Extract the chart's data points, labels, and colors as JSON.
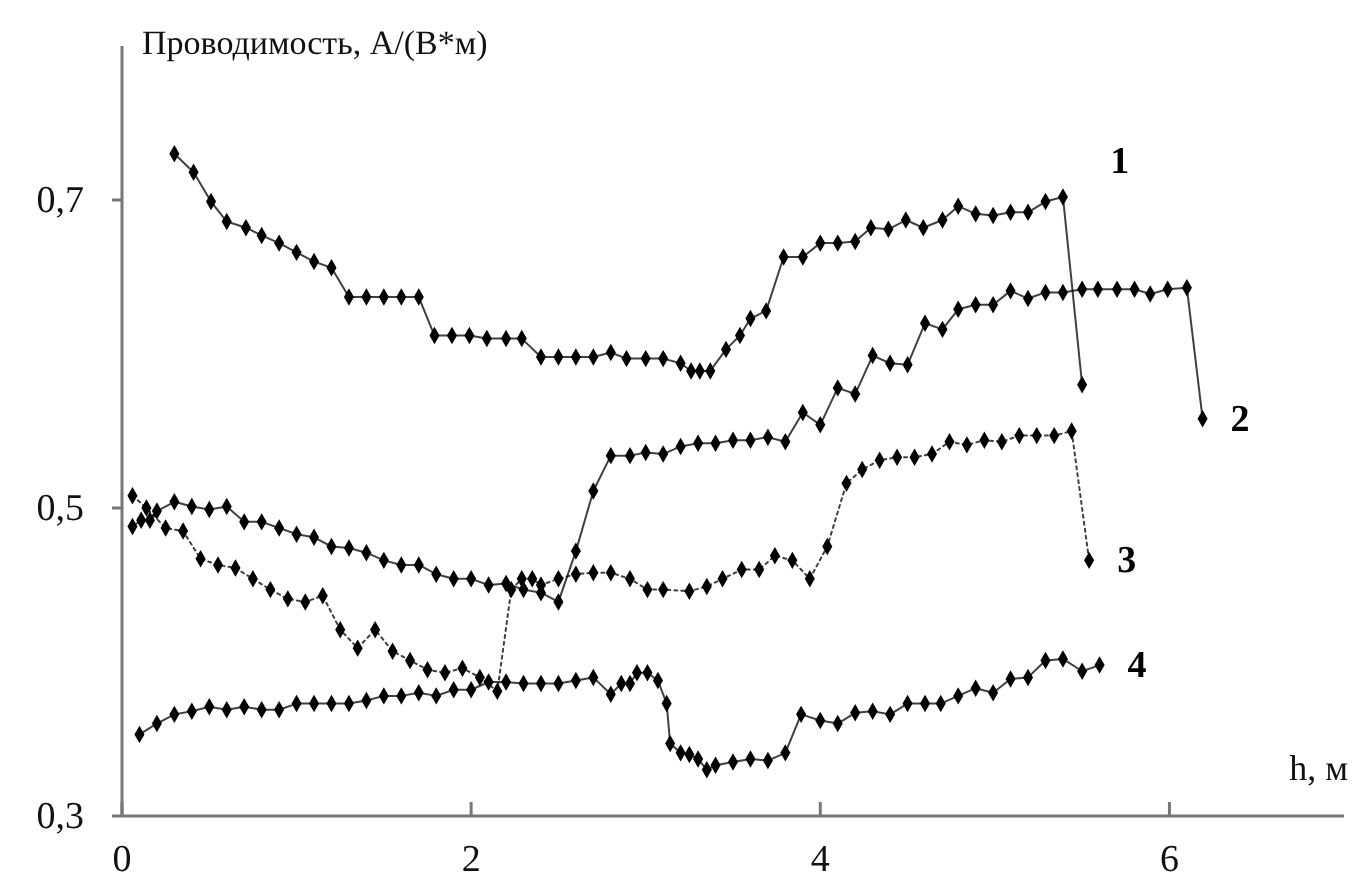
{
  "chart_data": {
    "type": "line",
    "ylabel": "Проводимость, А/(В*м)",
    "xlabel": "h, м",
    "xlim": [
      0,
      7
    ],
    "xticks": [
      0,
      2,
      4,
      6
    ],
    "ylim": [
      0.3,
      0.8
    ],
    "yticks": [
      {
        "value": 0.3,
        "label": "0,3"
      },
      {
        "value": 0.5,
        "label": "0,5"
      },
      {
        "value": 0.7,
        "label": "0,7"
      }
    ],
    "grid": false,
    "marker": "diamond",
    "series": [
      {
        "name": "1",
        "color": "#000000",
        "line_style": "solid",
        "x": [
          0.3,
          0.41,
          0.51,
          0.6,
          0.71,
          0.8,
          0.9,
          1.0,
          1.1,
          1.2,
          1.3,
          1.4,
          1.5,
          1.6,
          1.7,
          1.79,
          1.89,
          1.99,
          2.09,
          2.2,
          2.29,
          2.4,
          2.5,
          2.6,
          2.7,
          2.8,
          2.89,
          3.0,
          3.1,
          3.2,
          3.26,
          3.31,
          3.37,
          3.46,
          3.54,
          3.6,
          3.69,
          3.79,
          3.9,
          4.0,
          4.1,
          4.2,
          4.29,
          4.39,
          4.49,
          4.59,
          4.7,
          4.79,
          4.89,
          4.99,
          5.09,
          5.19,
          5.29,
          5.39,
          5.5
        ],
        "values": [
          0.73,
          0.718,
          0.699,
          0.686,
          0.682,
          0.677,
          0.672,
          0.666,
          0.66,
          0.656,
          0.637,
          0.637,
          0.637,
          0.637,
          0.637,
          0.612,
          0.612,
          0.612,
          0.61,
          0.61,
          0.61,
          0.598,
          0.598,
          0.598,
          0.598,
          0.601,
          0.597,
          0.597,
          0.597,
          0.594,
          0.589,
          0.589,
          0.589,
          0.603,
          0.612,
          0.623,
          0.628,
          0.663,
          0.663,
          0.672,
          0.672,
          0.673,
          0.682,
          0.681,
          0.687,
          0.682,
          0.687,
          0.696,
          0.691,
          0.69,
          0.692,
          0.692,
          0.699,
          0.702,
          0.58
        ]
      },
      {
        "name": "2",
        "color": "#000000",
        "line_style": "solid",
        "x": [
          0.06,
          0.11,
          0.16,
          0.2,
          0.3,
          0.4,
          0.5,
          0.6,
          0.7,
          0.8,
          0.9,
          1.0,
          1.1,
          1.2,
          1.3,
          1.4,
          1.5,
          1.6,
          1.7,
          1.8,
          1.9,
          2.0,
          2.1,
          2.2,
          2.3,
          2.4,
          2.5,
          2.6,
          2.7,
          2.8,
          2.91,
          3.0,
          3.1,
          3.2,
          3.3,
          3.4,
          3.5,
          3.6,
          3.7,
          3.8,
          3.9,
          4.0,
          4.1,
          4.2,
          4.3,
          4.4,
          4.5,
          4.6,
          4.7,
          4.79,
          4.89,
          4.99,
          5.09,
          5.19,
          5.29,
          5.39,
          5.5,
          5.59,
          5.7,
          5.8,
          5.89,
          5.99,
          6.1,
          6.19
        ],
        "values": [
          0.488,
          0.492,
          0.492,
          0.498,
          0.504,
          0.501,
          0.499,
          0.501,
          0.491,
          0.491,
          0.487,
          0.483,
          0.481,
          0.475,
          0.474,
          0.471,
          0.466,
          0.463,
          0.463,
          0.457,
          0.454,
          0.454,
          0.45,
          0.451,
          0.447,
          0.445,
          0.439,
          0.472,
          0.511,
          0.534,
          0.534,
          0.536,
          0.535,
          0.54,
          0.542,
          0.542,
          0.544,
          0.544,
          0.546,
          0.543,
          0.562,
          0.554,
          0.578,
          0.574,
          0.599,
          0.594,
          0.593,
          0.62,
          0.616,
          0.629,
          0.632,
          0.632,
          0.641,
          0.636,
          0.64,
          0.64,
          0.642,
          0.642,
          0.642,
          0.642,
          0.639,
          0.642,
          0.643,
          0.558
        ]
      },
      {
        "name": "3",
        "color": "#000000",
        "line_style": "dotted",
        "x": [
          0.06,
          0.14,
          0.25,
          0.35,
          0.45,
          0.55,
          0.65,
          0.75,
          0.85,
          0.95,
          1.05,
          1.15,
          1.25,
          1.35,
          1.45,
          1.55,
          1.65,
          1.75,
          1.85,
          1.95,
          2.05,
          2.15,
          2.23,
          2.29,
          2.35,
          2.4,
          2.5,
          2.6,
          2.7,
          2.8,
          2.91,
          3.01,
          3.1,
          3.25,
          3.35,
          3.44,
          3.55,
          3.65,
          3.74,
          3.84,
          3.94,
          4.04,
          4.15,
          4.24,
          4.34,
          4.44,
          4.54,
          4.64,
          4.74,
          4.84,
          4.94,
          5.04,
          5.14,
          5.24,
          5.34,
          5.44,
          5.54
        ],
        "values": [
          0.508,
          0.5,
          0.487,
          0.485,
          0.467,
          0.463,
          0.461,
          0.454,
          0.447,
          0.441,
          0.439,
          0.443,
          0.421,
          0.409,
          0.421,
          0.407,
          0.401,
          0.395,
          0.393,
          0.396,
          0.39,
          0.381,
          0.447,
          0.454,
          0.454,
          0.45,
          0.454,
          0.457,
          0.458,
          0.458,
          0.454,
          0.447,
          0.447,
          0.446,
          0.449,
          0.454,
          0.46,
          0.46,
          0.469,
          0.466,
          0.454,
          0.475,
          0.516,
          0.525,
          0.531,
          0.533,
          0.533,
          0.535,
          0.543,
          0.541,
          0.544,
          0.543,
          0.547,
          0.547,
          0.547,
          0.55,
          0.466
        ]
      },
      {
        "name": "4",
        "color": "#000000",
        "line_style": "solid",
        "x": [
          0.1,
          0.2,
          0.3,
          0.4,
          0.5,
          0.6,
          0.7,
          0.8,
          0.9,
          1.0,
          1.1,
          1.2,
          1.3,
          1.4,
          1.5,
          1.6,
          1.7,
          1.8,
          1.9,
          2.0,
          2.1,
          2.2,
          2.3,
          2.4,
          2.5,
          2.6,
          2.7,
          2.8,
          2.86,
          2.91,
          2.95,
          3.01,
          3.07,
          3.12,
          3.14,
          3.2,
          3.25,
          3.3,
          3.35,
          3.4,
          3.5,
          3.6,
          3.7,
          3.8,
          3.89,
          4.0,
          4.1,
          4.2,
          4.3,
          4.4,
          4.5,
          4.6,
          4.69,
          4.79,
          4.89,
          4.99,
          5.09,
          5.19,
          5.29,
          5.39,
          5.5,
          5.6
        ],
        "values": [
          0.353,
          0.36,
          0.366,
          0.368,
          0.371,
          0.369,
          0.371,
          0.369,
          0.369,
          0.373,
          0.373,
          0.373,
          0.373,
          0.375,
          0.378,
          0.378,
          0.38,
          0.378,
          0.382,
          0.382,
          0.387,
          0.387,
          0.386,
          0.386,
          0.386,
          0.388,
          0.39,
          0.379,
          0.386,
          0.386,
          0.393,
          0.393,
          0.388,
          0.373,
          0.347,
          0.341,
          0.34,
          0.337,
          0.33,
          0.333,
          0.335,
          0.337,
          0.336,
          0.341,
          0.366,
          0.362,
          0.36,
          0.367,
          0.368,
          0.366,
          0.373,
          0.373,
          0.373,
          0.378,
          0.383,
          0.38,
          0.389,
          0.39,
          0.401,
          0.402,
          0.394,
          0.398
        ]
      }
    ]
  }
}
